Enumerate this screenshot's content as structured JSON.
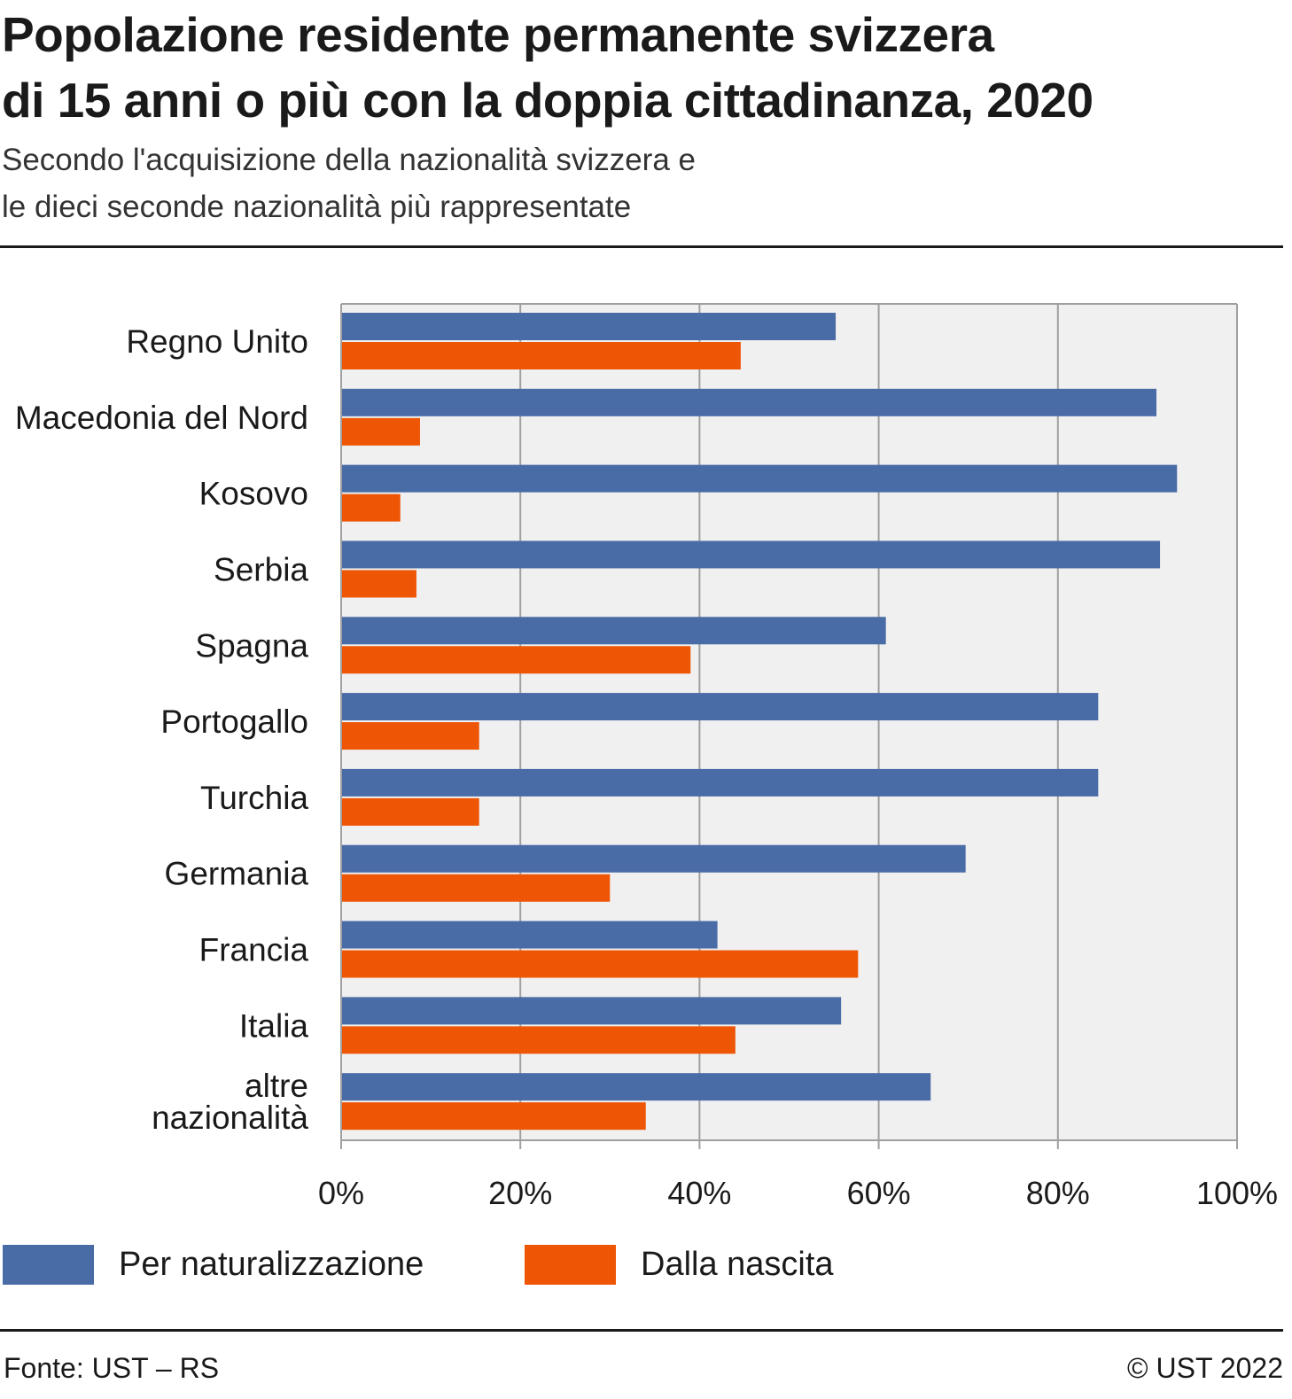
{
  "header": {
    "title_lines": [
      "Popolazione residente permanente svizzera",
      "di 15 anni o più con la doppia cittadinanza, 2020"
    ],
    "subtitle_lines": [
      "Secondo l'acquisizione della nazionalità svizzera e",
      "le dieci seconde nazionalità più rappresentate"
    ]
  },
  "footer": {
    "source": "Fonte: UST – RS",
    "copyright": "© UST 2022"
  },
  "colors": {
    "naturalizzazione": "#4a6ca6",
    "nascita": "#ee5504",
    "plot_background": "#f0f0f0",
    "grid": "#a0a0a0"
  },
  "chart_data": {
    "type": "bar",
    "orientation": "horizontal",
    "title": "Popolazione residente permanente svizzera di 15 anni o più con la doppia cittadinanza, 2020",
    "subtitle": "Secondo l'acquisizione della nazionalità svizzera e le dieci seconde nazionalità più rappresentate",
    "xlabel": "",
    "ylabel": "",
    "categories": [
      [
        "Regno Unito"
      ],
      [
        "Macedonia del Nord"
      ],
      [
        "Kosovo"
      ],
      [
        "Serbia"
      ],
      [
        "Spagna"
      ],
      [
        "Portogallo"
      ],
      [
        "Turchia"
      ],
      [
        "Germania"
      ],
      [
        "Francia"
      ],
      [
        "Italia"
      ],
      [
        "altre",
        "nazionalità"
      ]
    ],
    "series": [
      {
        "name": "Per naturalizzazione",
        "color": "#4a6ca6",
        "values": [
          55.2,
          91.0,
          93.3,
          91.4,
          60.8,
          84.5,
          84.5,
          69.7,
          42.0,
          55.8,
          65.8
        ]
      },
      {
        "name": "Dalla nascita",
        "color": "#ee5504",
        "values": [
          44.6,
          8.8,
          6.6,
          8.4,
          39.0,
          15.4,
          15.4,
          30.0,
          57.7,
          44.0,
          34.0
        ]
      }
    ],
    "xlim": [
      0,
      100
    ],
    "xticks": [
      0,
      20,
      40,
      60,
      80,
      100
    ],
    "xtick_labels": [
      "0%",
      "20%",
      "40%",
      "60%",
      "80%",
      "100%"
    ],
    "grid": true,
    "legend_position": "bottom"
  }
}
